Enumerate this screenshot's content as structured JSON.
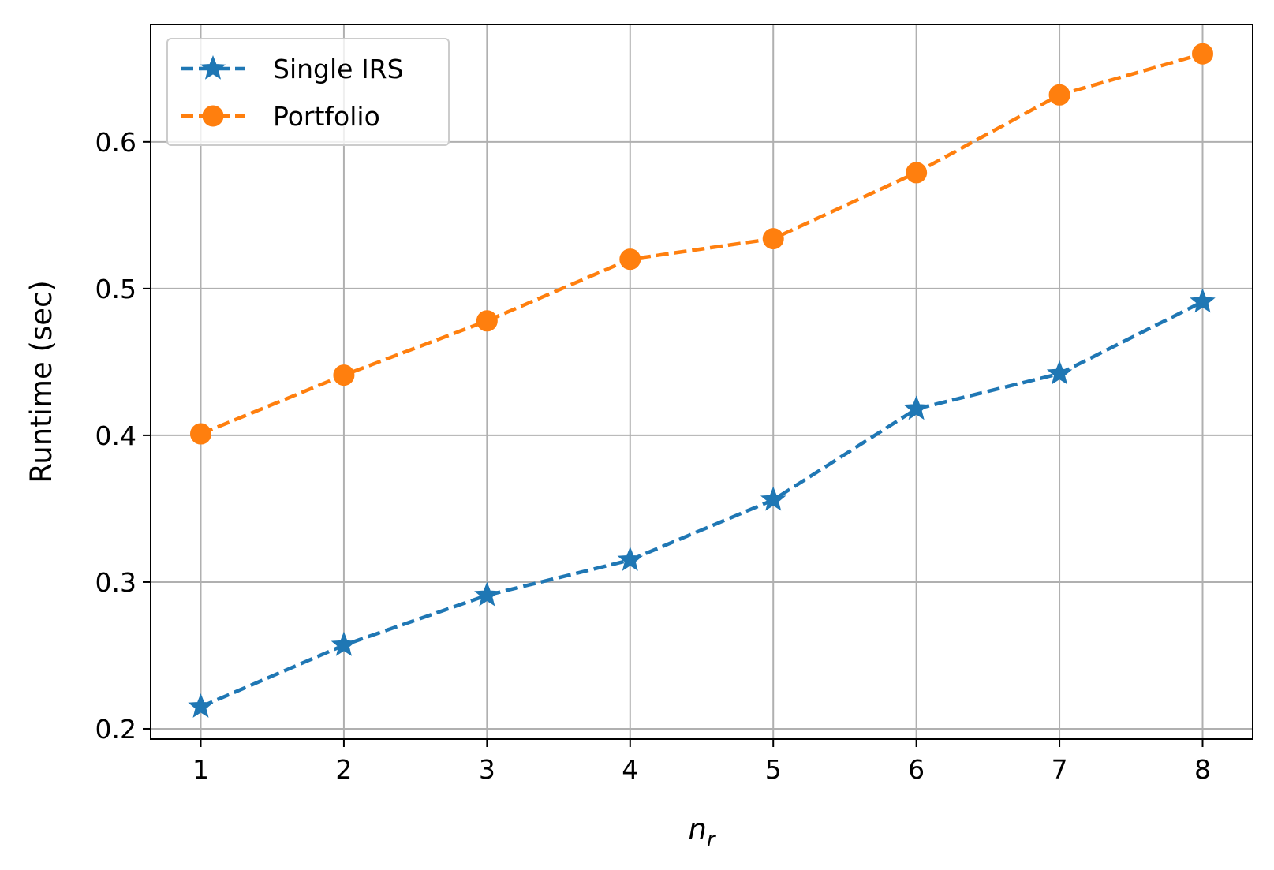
{
  "chart_data": {
    "type": "line",
    "title": "",
    "xlabel": "n",
    "xlabel_subscript": "r",
    "ylabel": "Runtime (sec)",
    "x": [
      1,
      2,
      3,
      4,
      5,
      6,
      7,
      8
    ],
    "xlim": [
      0.65,
      8.35
    ],
    "ylim": [
      0.193,
      0.68
    ],
    "x_ticks": [
      1,
      2,
      3,
      4,
      5,
      6,
      7,
      8
    ],
    "y_ticks": [
      0.2,
      0.3,
      0.4,
      0.5,
      0.6
    ],
    "x_tick_labels": [
      "1",
      "2",
      "3",
      "4",
      "5",
      "6",
      "7",
      "8"
    ],
    "y_tick_labels": [
      "0.2",
      "0.3",
      "0.4",
      "0.5",
      "0.6"
    ],
    "grid": true,
    "legend_position": "top-left",
    "series": [
      {
        "name": "Single IRS",
        "values": [
          0.215,
          0.257,
          0.291,
          0.315,
          0.356,
          0.418,
          0.442,
          0.491
        ],
        "color": "#1f77b4",
        "marker": "star",
        "line_style": "dashed"
      },
      {
        "name": "Portfolio",
        "values": [
          0.401,
          0.441,
          0.478,
          0.52,
          0.534,
          0.579,
          0.632,
          0.66
        ],
        "color": "#ff7f0e",
        "marker": "circle",
        "line_style": "dashed"
      }
    ]
  }
}
